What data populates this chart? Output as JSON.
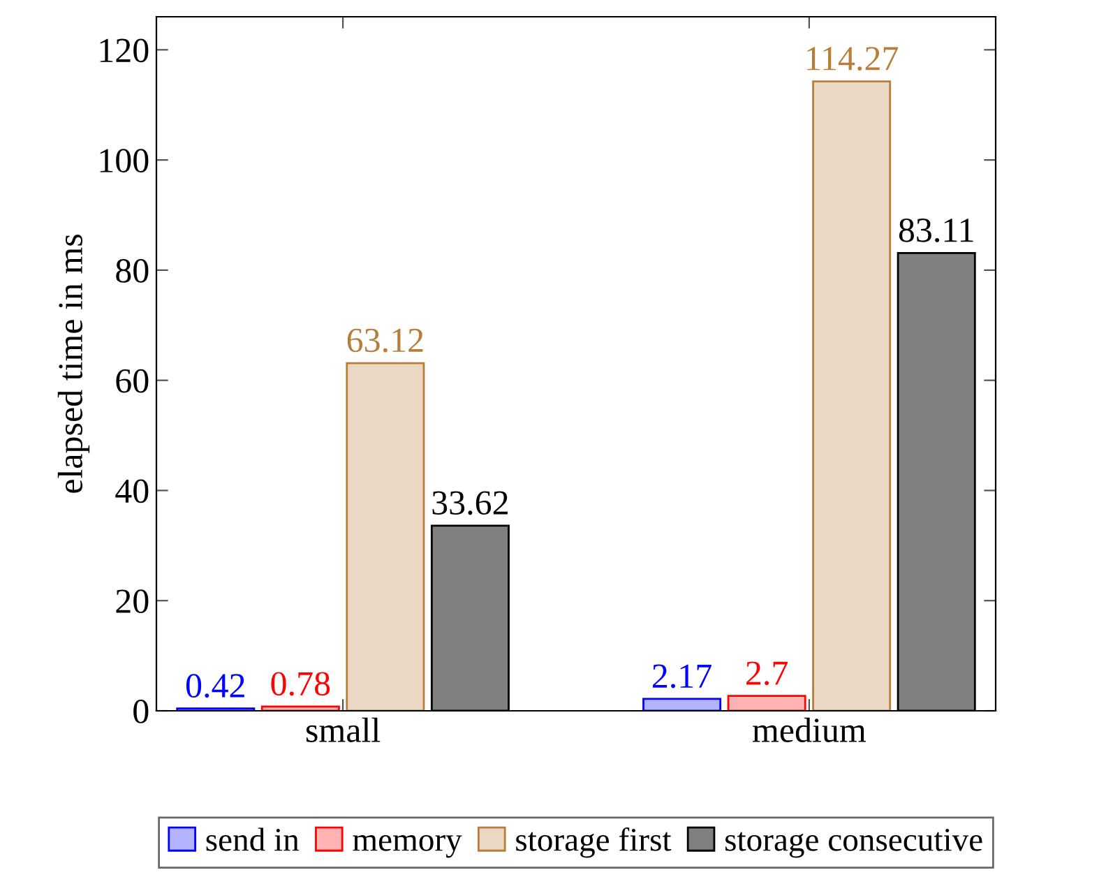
{
  "chart_data": {
    "type": "bar",
    "ylabel": "elapsed time in ms",
    "categories": [
      "small",
      "medium"
    ],
    "series": [
      {
        "name": "send in",
        "color": "#b3b3ff",
        "values": [
          0.42,
          2.17
        ]
      },
      {
        "name": "memory",
        "color": "#ffb3b3",
        "values": [
          0.78,
          2.7
        ]
      },
      {
        "name": "storage first",
        "color": "#ead8c4",
        "values": [
          63.12,
          114.27
        ]
      },
      {
        "name": "storage consecutive",
        "color": "#808080",
        "values": [
          33.62,
          83.11
        ]
      }
    ],
    "ylim": [
      0,
      126
    ],
    "yticks": [
      0,
      20,
      40,
      60,
      80,
      100,
      120
    ],
    "data_labels": true,
    "grid": false,
    "legend": "bottom"
  }
}
